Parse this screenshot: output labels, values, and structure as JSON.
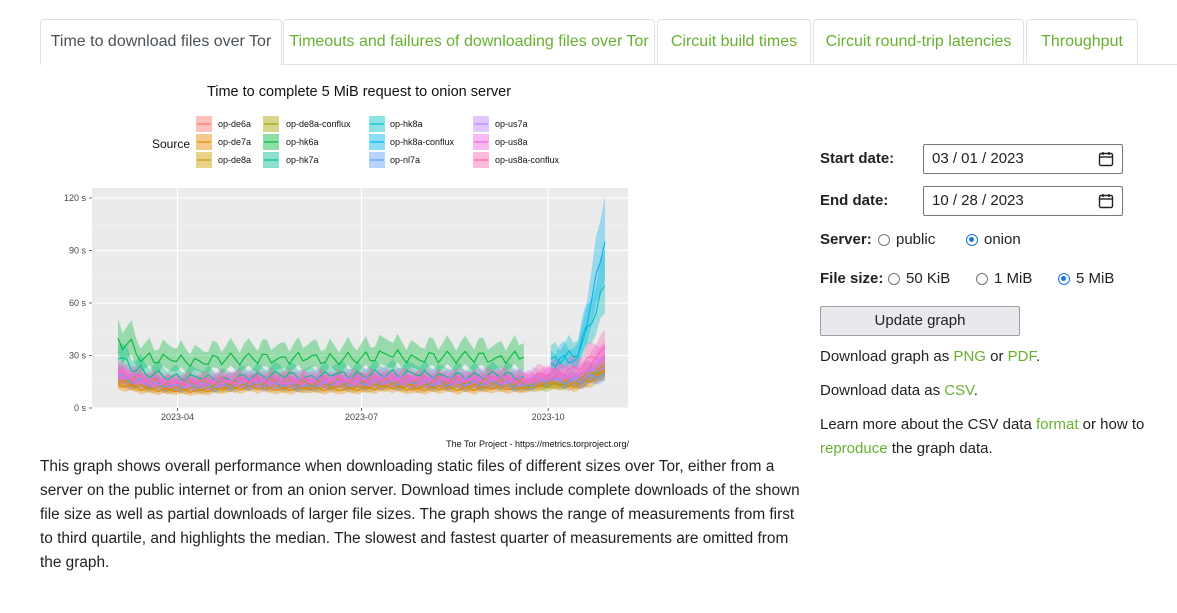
{
  "tabs": [
    {
      "label": "Time to download files over Tor",
      "active": true
    },
    {
      "label": "Timeouts and failures of downloading files over Tor",
      "active": false
    },
    {
      "label": "Circuit build times",
      "active": false
    },
    {
      "label": "Circuit round-trip latencies",
      "active": false
    },
    {
      "label": "Throughput",
      "active": false
    }
  ],
  "colors": {
    "link": "#68b030",
    "accent": "#1a73e8"
  },
  "chart_data": {
    "type": "area",
    "title": "Time to complete 5 MiB request to onion server",
    "legend_title": "Source",
    "legend_placement": "top",
    "caption": "The Tor Project - https://metrics.torproject.org/",
    "x_ticks": [
      "2023-04",
      "2023-07",
      "2023-10"
    ],
    "y_ticks": [
      "0 s",
      "30 s",
      "60 s",
      "90 s",
      "120 s"
    ],
    "ylim": [
      0,
      120
    ],
    "grid": true,
    "series": [
      {
        "name": "op-de6a",
        "color": "#f8766d",
        "median": [
          15,
          13,
          12,
          12,
          13,
          14,
          13,
          13,
          14,
          13,
          14,
          13,
          14,
          13,
          14,
          13,
          17,
          14,
          22
        ]
      },
      {
        "name": "op-de7a",
        "color": "#e58700",
        "median": [
          14,
          11,
          10,
          10,
          11,
          12,
          11,
          11,
          11,
          11,
          12,
          11,
          11,
          11,
          12,
          11,
          15,
          13,
          20
        ]
      },
      {
        "name": "op-de8a",
        "color": "#c99800",
        "median": [
          15,
          12,
          11,
          11,
          12,
          13,
          12,
          12,
          12,
          12,
          13,
          12,
          13,
          12,
          13,
          12,
          14,
          14,
          22
        ]
      },
      {
        "name": "op-de8a-conflux",
        "color": "#a3a500",
        "median": [
          18,
          15,
          14,
          14,
          14,
          15,
          15,
          14,
          15,
          15,
          16,
          15,
          15,
          15,
          15,
          14,
          13,
          16,
          24
        ]
      },
      {
        "name": "op-hk6a",
        "color": "#00ba38",
        "median": [
          40,
          29,
          27,
          27,
          28,
          28,
          29,
          28,
          28,
          29,
          30,
          29,
          29,
          29,
          29,
          29,
          null,
          null,
          null
        ]
      },
      {
        "name": "op-hk7a",
        "color": "#00c08b",
        "median": [
          28,
          20,
          18,
          17,
          17,
          18,
          19,
          18,
          19,
          19,
          20,
          19,
          19,
          18,
          19,
          18,
          null,
          null,
          null
        ]
      },
      {
        "name": "op-hk8a",
        "color": "#00bfc4",
        "median": [
          null,
          null,
          null,
          null,
          null,
          null,
          null,
          null,
          null,
          null,
          null,
          null,
          null,
          null,
          null,
          null,
          28,
          30,
          70
        ]
      },
      {
        "name": "op-hk8a-conflux",
        "color": "#00b4f0",
        "median": [
          null,
          null,
          null,
          null,
          null,
          null,
          null,
          null,
          null,
          null,
          null,
          null,
          null,
          null,
          null,
          null,
          26,
          29,
          95
        ]
      },
      {
        "name": "op-nl7a",
        "color": "#619cff",
        "median": [
          18,
          14,
          13,
          12,
          13,
          14,
          13,
          13,
          14,
          14,
          15,
          14,
          14,
          14,
          14,
          13,
          16,
          15,
          20
        ]
      },
      {
        "name": "op-us7a",
        "color": "#b983ff",
        "median": [
          20,
          15,
          14,
          14,
          15,
          16,
          15,
          16,
          16,
          16,
          17,
          16,
          16,
          16,
          17,
          16,
          18,
          17,
          28
        ]
      },
      {
        "name": "op-us8a",
        "color": "#f564e3",
        "median": [
          19,
          15,
          14,
          14,
          15,
          15,
          15,
          15,
          15,
          16,
          16,
          16,
          16,
          16,
          16,
          15,
          18,
          19,
          30
        ]
      },
      {
        "name": "op-us8a-conflux",
        "color": "#ff64b0",
        "median": [
          20,
          16,
          15,
          15,
          16,
          16,
          16,
          16,
          16,
          16,
          17,
          16,
          16,
          16,
          17,
          16,
          20,
          22,
          35
        ]
      }
    ]
  },
  "description": "This graph shows overall performance when downloading static files of different sizes over Tor, either from a server on the public internet or from an onion server. Download times include complete downloads of the shown file size as well as partial downloads of larger file sizes. The graph shows the range of measurements from first to third quartile, and highlights the median. The slowest and fastest quarter of measurements are omitted from the graph.",
  "form": {
    "start_label": "Start date:",
    "start_value": "03 / 01 / 2023",
    "end_label": "End date:",
    "end_value": "10 / 28 / 2023",
    "server_label": "Server:",
    "server_options": [
      {
        "label": "public",
        "checked": false
      },
      {
        "label": "onion",
        "checked": true
      }
    ],
    "filesize_label": "File size:",
    "filesize_options": [
      {
        "label": "50 KiB",
        "checked": false
      },
      {
        "label": "1 MiB",
        "checked": false
      },
      {
        "label": "5 MiB",
        "checked": true
      }
    ],
    "update_button": "Update graph"
  },
  "downloads": {
    "graph_prefix": "Download graph as",
    "png": "PNG",
    "or": "or",
    "pdf": "PDF",
    "period": ".",
    "data_prefix": "Download data as",
    "csv": "CSV",
    "learn_prefix": "Learn more about the CSV data",
    "format": "format",
    "learn_mid": "or how to",
    "reproduce": "reproduce",
    "learn_suffix": "the graph data."
  }
}
